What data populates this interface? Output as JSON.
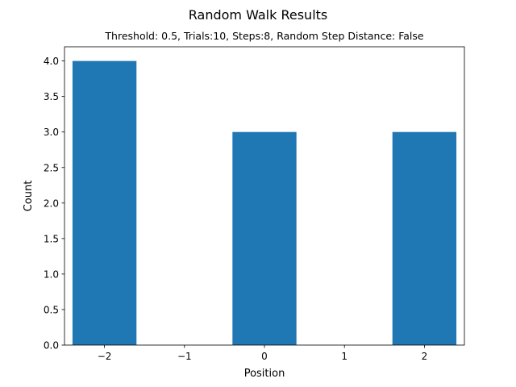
{
  "chart_data": {
    "type": "bar",
    "title": "Random Walk Results",
    "subtitle": "Threshold: 0.5, Trials:10, Steps:8, Random Step Distance: False",
    "xlabel": "Position",
    "ylabel": "Count",
    "x": [
      -2,
      0,
      2
    ],
    "values": [
      4,
      3,
      3
    ],
    "bar_width": 0.8,
    "xlim": [
      -2.5,
      2.5
    ],
    "ylim": [
      0,
      4.2
    ],
    "xticks": [
      -2,
      -1,
      0,
      1,
      2
    ],
    "xtick_labels": [
      "−2",
      "−1",
      "0",
      "1",
      "2"
    ],
    "yticks": [
      0,
      0.5,
      1,
      1.5,
      2,
      2.5,
      3,
      3.5,
      4
    ],
    "ytick_labels": [
      "0.0",
      "0.5",
      "1.0",
      "1.5",
      "2.0",
      "2.5",
      "3.0",
      "3.5",
      "4.0"
    ],
    "bar_color": "#1f77b4",
    "grid": false,
    "legend": false
  }
}
